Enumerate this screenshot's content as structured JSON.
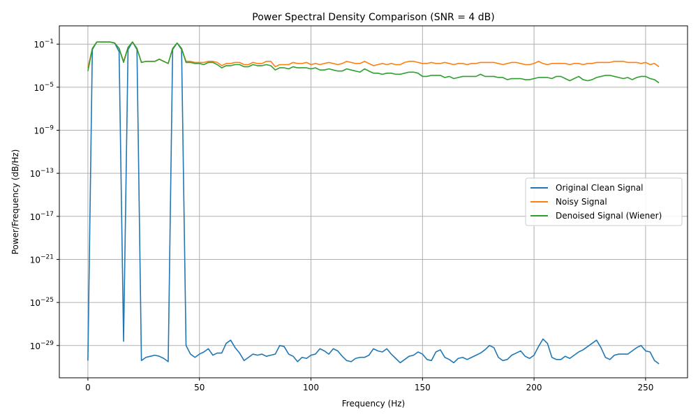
{
  "chart_data": {
    "type": "line",
    "title": "Power Spectral Density Comparison (SNR = 4 dB)",
    "xlabel": "Frequency (Hz)",
    "ylabel": "Power/Frequency (dB/Hz)",
    "xlim": [
      -12.8,
      268.8
    ],
    "ylim_exponent": [
      -32,
      0.7
    ],
    "y_scale": "log",
    "x_ticks": [
      {
        "value": 0,
        "label": "0"
      },
      {
        "value": 50,
        "label": "50"
      },
      {
        "value": 100,
        "label": "100"
      },
      {
        "value": 150,
        "label": "150"
      },
      {
        "value": 200,
        "label": "200"
      },
      {
        "value": 250,
        "label": "250"
      }
    ],
    "y_ticks": [
      {
        "exp": -1,
        "base": "10",
        "power": "−1"
      },
      {
        "exp": -5,
        "base": "10",
        "power": "−5"
      },
      {
        "exp": -9,
        "base": "10",
        "power": "−9"
      },
      {
        "exp": -13,
        "base": "10",
        "power": "−13"
      },
      {
        "exp": -17,
        "base": "10",
        "power": "−17"
      },
      {
        "exp": -21,
        "base": "10",
        "power": "−21"
      },
      {
        "exp": -25,
        "base": "10",
        "power": "−25"
      },
      {
        "exp": -29,
        "base": "10",
        "power": "−29"
      }
    ],
    "grid": true,
    "legend_position": "center-right",
    "x": [
      0,
      2,
      4,
      6,
      8,
      10,
      12,
      14,
      16,
      18,
      20,
      22,
      24,
      26,
      28,
      30,
      32,
      34,
      36,
      38,
      40,
      42,
      44,
      46,
      48,
      50,
      52,
      54,
      56,
      58,
      60,
      62,
      64,
      66,
      68,
      70,
      72,
      74,
      76,
      78,
      80,
      82,
      84,
      86,
      88,
      90,
      92,
      94,
      96,
      98,
      100,
      102,
      104,
      106,
      108,
      110,
      112,
      114,
      116,
      118,
      120,
      122,
      124,
      126,
      128,
      130,
      132,
      134,
      136,
      138,
      140,
      142,
      144,
      146,
      148,
      150,
      152,
      154,
      156,
      158,
      160,
      162,
      164,
      166,
      168,
      170,
      172,
      174,
      176,
      178,
      180,
      182,
      184,
      186,
      188,
      190,
      192,
      194,
      196,
      198,
      200,
      202,
      204,
      206,
      208,
      210,
      212,
      214,
      216,
      218,
      220,
      222,
      224,
      226,
      228,
      230,
      232,
      234,
      236,
      238,
      240,
      242,
      244,
      246,
      248,
      250,
      252,
      254,
      256
    ],
    "series": [
      {
        "name": "Original Clean Signal",
        "color": "#1f77b4",
        "log10_values": [
          -30.4,
          -1.5,
          -0.8,
          -0.8,
          -0.8,
          -0.8,
          -0.9,
          -1.7,
          -28.6,
          -1.5,
          -0.8,
          -1.5,
          -30.4,
          -30.1,
          -30.0,
          -29.9,
          -30.0,
          -30.2,
          -30.5,
          -1.5,
          -0.9,
          -1.5,
          -29.0,
          -29.8,
          -30.1,
          -29.8,
          -29.6,
          -29.3,
          -29.9,
          -29.7,
          -29.7,
          -28.8,
          -28.5,
          -29.2,
          -29.7,
          -30.4,
          -30.1,
          -29.8,
          -29.9,
          -29.8,
          -30.0,
          -29.9,
          -29.8,
          -29.0,
          -29.1,
          -29.8,
          -30.0,
          -30.5,
          -30.1,
          -30.2,
          -29.9,
          -29.8,
          -29.3,
          -29.5,
          -29.8,
          -29.3,
          -29.5,
          -30.0,
          -30.4,
          -30.5,
          -30.2,
          -30.1,
          -30.1,
          -29.9,
          -29.3,
          -29.5,
          -29.6,
          -29.3,
          -29.8,
          -30.2,
          -30.6,
          -30.3,
          -30.0,
          -29.9,
          -29.6,
          -29.8,
          -30.3,
          -30.4,
          -29.6,
          -29.4,
          -30.1,
          -30.3,
          -30.6,
          -30.2,
          -30.1,
          -30.3,
          -30.1,
          -29.9,
          -29.7,
          -29.4,
          -29.0,
          -29.2,
          -30.1,
          -30.4,
          -30.3,
          -29.9,
          -29.7,
          -29.5,
          -30.0,
          -30.2,
          -29.9,
          -29.1,
          -28.4,
          -28.8,
          -30.1,
          -30.3,
          -30.3,
          -30.0,
          -30.2,
          -29.9,
          -29.6,
          -29.4,
          -29.1,
          -28.8,
          -28.5,
          -29.2,
          -30.1,
          -30.3,
          -29.9,
          -29.8,
          -29.8,
          -29.8,
          -29.5,
          -29.2,
          -29.0,
          -29.5,
          -29.6,
          -30.4,
          -30.7
        ]
      },
      {
        "name": "Noisy Signal",
        "color": "#ff7f0e",
        "log10_values": [
          -3.2,
          -1.4,
          -0.8,
          -0.8,
          -0.8,
          -0.8,
          -0.9,
          -1.4,
          -2.6,
          -1.3,
          -0.8,
          -1.4,
          -2.7,
          -2.6,
          -2.6,
          -2.6,
          -2.4,
          -2.6,
          -2.8,
          -1.4,
          -0.9,
          -1.4,
          -2.6,
          -2.6,
          -2.7,
          -2.7,
          -2.7,
          -2.6,
          -2.6,
          -2.7,
          -3.0,
          -2.8,
          -2.8,
          -2.7,
          -2.7,
          -2.9,
          -2.9,
          -2.7,
          -2.8,
          -2.8,
          -2.6,
          -2.6,
          -3.1,
          -2.9,
          -2.9,
          -2.9,
          -2.7,
          -2.8,
          -2.8,
          -2.7,
          -2.9,
          -2.8,
          -2.9,
          -2.8,
          -2.7,
          -2.8,
          -2.9,
          -2.8,
          -2.6,
          -2.7,
          -2.8,
          -2.8,
          -2.6,
          -2.8,
          -3.0,
          -2.9,
          -2.8,
          -2.9,
          -2.8,
          -2.9,
          -2.9,
          -2.7,
          -2.6,
          -2.6,
          -2.7,
          -2.8,
          -2.8,
          -2.7,
          -2.8,
          -2.8,
          -2.7,
          -2.8,
          -2.9,
          -2.8,
          -2.8,
          -2.9,
          -2.8,
          -2.8,
          -2.7,
          -2.7,
          -2.7,
          -2.7,
          -2.8,
          -2.9,
          -2.8,
          -2.7,
          -2.7,
          -2.8,
          -2.9,
          -2.9,
          -2.8,
          -2.6,
          -2.8,
          -2.9,
          -2.8,
          -2.8,
          -2.8,
          -2.8,
          -2.9,
          -2.8,
          -2.8,
          -2.9,
          -2.8,
          -2.8,
          -2.7,
          -2.7,
          -2.7,
          -2.7,
          -2.6,
          -2.6,
          -2.6,
          -2.7,
          -2.7,
          -2.7,
          -2.8,
          -2.7,
          -2.9,
          -2.8,
          -3.1
        ]
      },
      {
        "name": "Denoised Signal (Wiener)",
        "color": "#2ca02c",
        "log10_values": [
          -3.5,
          -1.4,
          -0.8,
          -0.8,
          -0.8,
          -0.8,
          -0.9,
          -1.4,
          -2.7,
          -1.3,
          -0.8,
          -1.4,
          -2.7,
          -2.6,
          -2.6,
          -2.6,
          -2.4,
          -2.6,
          -2.8,
          -1.4,
          -0.9,
          -1.4,
          -2.7,
          -2.7,
          -2.8,
          -2.8,
          -2.9,
          -2.7,
          -2.7,
          -2.9,
          -3.2,
          -3.0,
          -3.0,
          -2.9,
          -2.9,
          -3.1,
          -3.1,
          -2.9,
          -3.0,
          -3.0,
          -2.9,
          -3.0,
          -3.4,
          -3.2,
          -3.2,
          -3.3,
          -3.1,
          -3.2,
          -3.2,
          -3.2,
          -3.3,
          -3.2,
          -3.4,
          -3.4,
          -3.3,
          -3.4,
          -3.5,
          -3.5,
          -3.3,
          -3.4,
          -3.5,
          -3.6,
          -3.3,
          -3.5,
          -3.7,
          -3.7,
          -3.8,
          -3.7,
          -3.7,
          -3.8,
          -3.8,
          -3.7,
          -3.6,
          -3.6,
          -3.7,
          -4.0,
          -4.0,
          -3.9,
          -3.9,
          -3.9,
          -4.1,
          -4.0,
          -4.2,
          -4.1,
          -4.0,
          -4.0,
          -4.0,
          -4.0,
          -3.8,
          -4.0,
          -4.0,
          -4.0,
          -4.1,
          -4.1,
          -4.3,
          -4.2,
          -4.2,
          -4.2,
          -4.3,
          -4.3,
          -4.2,
          -4.1,
          -4.1,
          -4.1,
          -4.2,
          -4.0,
          -4.0,
          -4.2,
          -4.4,
          -4.2,
          -4.0,
          -4.3,
          -4.4,
          -4.3,
          -4.1,
          -4.0,
          -3.9,
          -3.9,
          -4.0,
          -4.1,
          -4.2,
          -4.1,
          -4.3,
          -4.1,
          -4.0,
          -4.0,
          -4.2,
          -4.3,
          -4.6
        ]
      }
    ]
  }
}
